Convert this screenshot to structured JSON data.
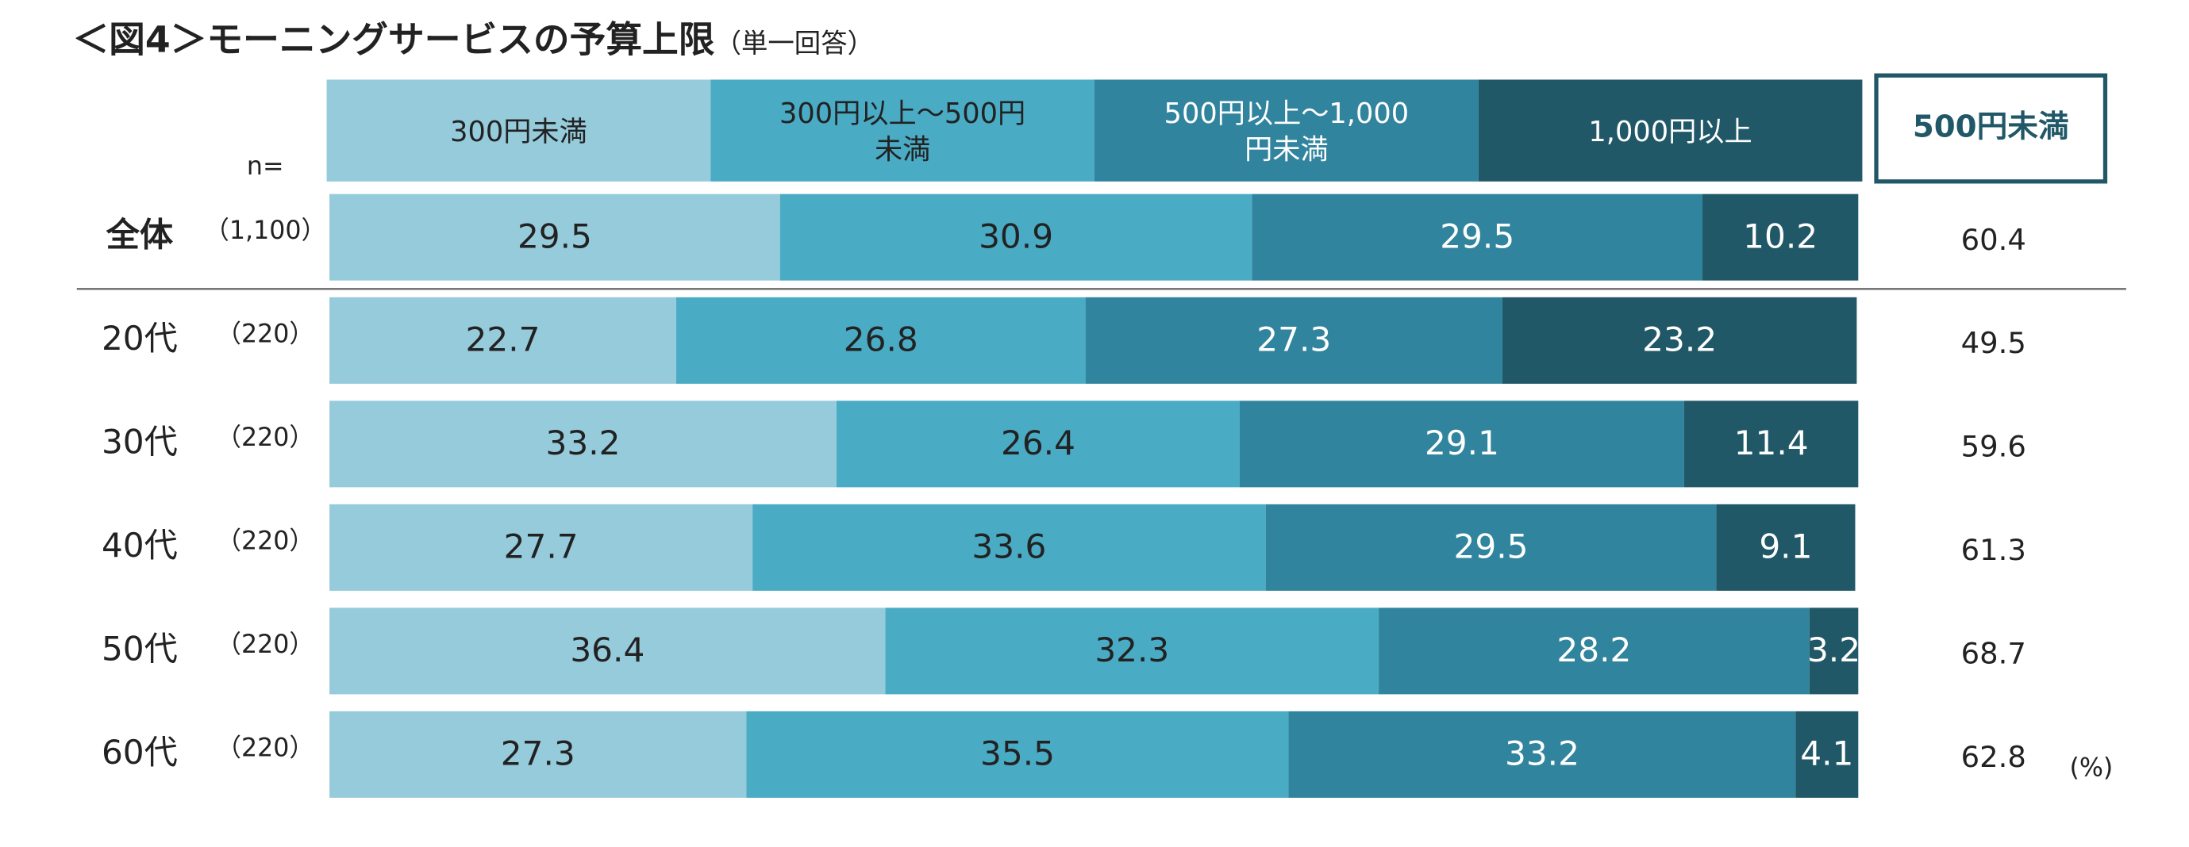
{
  "chart_data": {
    "type": "bar",
    "orientation": "horizontal",
    "stacked": true,
    "title": "＜図4＞モーニングサービスの予算上限",
    "subtitle": "（単一回答）",
    "n_label": "n=",
    "categories": [
      "全体",
      "20代",
      "30代",
      "40代",
      "50代",
      "60代"
    ],
    "n": [
      "（1,100）",
      "（220）",
      "（220）",
      "（220）",
      "（220）",
      "（220）"
    ],
    "series": [
      {
        "name": "300円未満",
        "color": "#96cbdc",
        "label_color": "#222222",
        "values": [
          29.5,
          22.7,
          33.2,
          27.7,
          36.4,
          27.3
        ]
      },
      {
        "name": "300円以上～500円未満",
        "color": "#4aabc5",
        "label_color": "#222222",
        "values": [
          30.9,
          26.8,
          26.4,
          33.6,
          32.3,
          35.5
        ]
      },
      {
        "name": "500円以上～1,000円未満",
        "color": "#31849d",
        "label_color": "#ffffff",
        "values": [
          29.5,
          27.3,
          29.1,
          29.5,
          28.2,
          33.2
        ]
      },
      {
        "name": "1,000円以上",
        "color": "#215868",
        "label_color": "#ffffff",
        "values": [
          10.2,
          23.2,
          11.4,
          9.1,
          3.2,
          4.1
        ]
      }
    ],
    "summary": {
      "name": "500円未満",
      "color": "#215868",
      "values": [
        60.4,
        49.5,
        59.6,
        61.3,
        68.7,
        62.8
      ]
    },
    "unit": "(%)",
    "xlim": [
      0,
      100
    ]
  }
}
